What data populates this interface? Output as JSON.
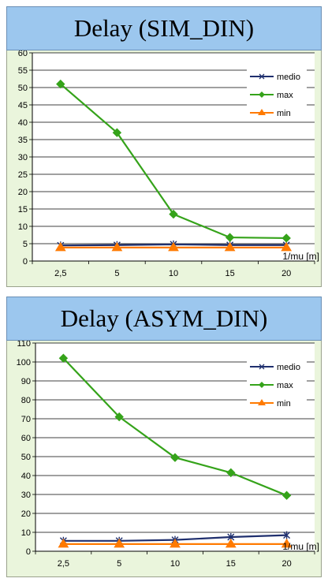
{
  "chart_data": [
    {
      "type": "line",
      "title": "Delay (SIM_DIN)",
      "xlabel": "1/mu [m]",
      "ylabel": "",
      "categories": [
        "2,5",
        "5",
        "10",
        "15",
        "20"
      ],
      "ylim": [
        0,
        60
      ],
      "yticks": [
        0,
        5,
        10,
        15,
        20,
        25,
        30,
        35,
        40,
        45,
        50,
        55,
        60
      ],
      "legend_position": "top-right",
      "grid": true,
      "series": [
        {
          "name": "medio",
          "values": [
            4.5,
            4.6,
            4.8,
            4.6,
            4.6
          ],
          "color": "#1f2f6e",
          "marker": "x"
        },
        {
          "name": "max",
          "values": [
            51,
            37,
            13.5,
            6.8,
            6.6
          ],
          "color": "#35a31a",
          "marker": "diamond"
        },
        {
          "name": "min",
          "values": [
            3.9,
            3.9,
            3.9,
            3.9,
            3.9
          ],
          "color": "#ff7a00",
          "marker": "triangle"
        }
      ]
    },
    {
      "type": "line",
      "title": "Delay (ASYM_DIN)",
      "xlabel": "1/mu [m]",
      "ylabel": "",
      "categories": [
        "2,5",
        "5",
        "10",
        "15",
        "20"
      ],
      "ylim": [
        0,
        110
      ],
      "yticks": [
        0,
        10,
        20,
        30,
        40,
        50,
        60,
        70,
        80,
        90,
        100,
        110
      ],
      "legend_position": "top-right",
      "grid": true,
      "series": [
        {
          "name": "medio",
          "values": [
            5.5,
            5.5,
            6,
            7.5,
            8.5
          ],
          "color": "#1f2f6e",
          "marker": "x"
        },
        {
          "name": "max",
          "values": [
            102,
            71,
            49.5,
            41.5,
            29.5
          ],
          "color": "#35a31a",
          "marker": "diamond"
        },
        {
          "name": "min",
          "values": [
            3.8,
            3.8,
            3.8,
            3.8,
            3.8
          ],
          "color": "#ff7a00",
          "marker": "triangle"
        }
      ]
    }
  ]
}
